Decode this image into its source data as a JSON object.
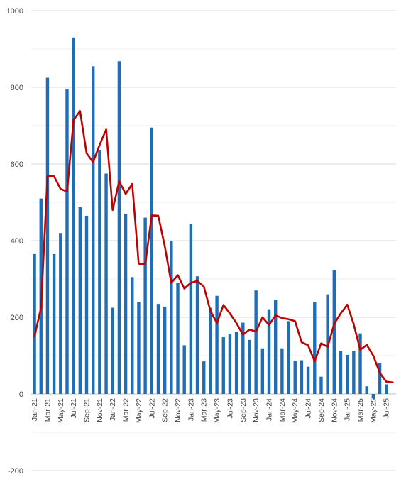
{
  "chart_data": {
    "type": "bar",
    "title": "",
    "xlabel": "",
    "ylabel": "",
    "ylim": [
      -200,
      1000
    ],
    "yticks": [
      -200,
      0,
      200,
      400,
      600,
      800,
      1000
    ],
    "grid": true,
    "legend": "none",
    "categories": [
      "Jan-21",
      "Feb-21",
      "Mar-21",
      "Apr-21",
      "May-21",
      "Jun-21",
      "Jul-21",
      "Aug-21",
      "Sep-21",
      "Oct-21",
      "Nov-21",
      "Dec-21",
      "Jan-22",
      "Feb-22",
      "Mar-22",
      "Apr-22",
      "May-22",
      "Jun-22",
      "Jul-22",
      "Aug-22",
      "Sep-22",
      "Oct-22",
      "Nov-22",
      "Dec-22",
      "Jan-23",
      "Feb-23",
      "Mar-23",
      "Apr-23",
      "May-23",
      "Jun-23",
      "Jul-23",
      "Aug-23",
      "Sep-23",
      "Oct-23",
      "Nov-23",
      "Dec-23",
      "Jan-24",
      "Feb-24",
      "Mar-24",
      "Apr-24",
      "May-24",
      "Jun-24",
      "Jul-24",
      "Aug-24",
      "Sep-24",
      "Oct-24",
      "Nov-24",
      "Dec-24",
      "Jan-25",
      "Feb-25",
      "Mar-25",
      "Apr-25",
      "May-25",
      "Jun-25",
      "Jul-25",
      "Aug-25"
    ],
    "x_tick_labels": [
      "Jan-21",
      "",
      "Mar-21",
      "",
      "May-21",
      "",
      "Jul-21",
      "",
      "Sep-21",
      "",
      "Nov-21",
      "",
      "Jan-22",
      "",
      "Mar-22",
      "",
      "May-22",
      "",
      "Jul-22",
      "",
      "Sep-22",
      "",
      "Nov-22",
      "",
      "Jan-23",
      "",
      "Mar-23",
      "",
      "May-23",
      "",
      "Jul-23",
      "",
      "Sep-23",
      "",
      "Nov-23",
      "",
      "Jan-24",
      "",
      "Mar-24",
      "",
      "May-24",
      "",
      "Jul-24",
      "",
      "Sep-24",
      "",
      "Nov-24",
      "",
      "Jan-25",
      "",
      "Mar-25",
      "",
      "May-25",
      "",
      "Jul-25",
      ""
    ],
    "series": [
      {
        "type": "bar",
        "color": "#1f6eb5",
        "values": [
          365,
          510,
          825,
          365,
          420,
          795,
          930,
          487,
          465,
          855,
          635,
          575,
          225,
          868,
          470,
          305,
          240,
          460,
          695,
          235,
          228,
          400,
          290,
          127,
          443,
          307,
          85,
          225,
          256,
          148,
          157,
          162,
          186,
          141,
          270,
          119,
          221,
          245,
          119,
          190,
          87,
          88,
          71,
          240,
          45,
          260,
          323,
          112,
          102,
          112,
          158,
          20,
          -12,
          80,
          25,
          0
        ]
      },
      {
        "type": "line",
        "color": "#c00000",
        "values": [
          150,
          225,
          568,
          568,
          535,
          528,
          715,
          738,
          628,
          605,
          650,
          690,
          480,
          555,
          522,
          548,
          340,
          338,
          466,
          465,
          385,
          290,
          310,
          275,
          290,
          295,
          280,
          217,
          185,
          232,
          210,
          185,
          155,
          168,
          163,
          200,
          180,
          205,
          198,
          195,
          190,
          135,
          127,
          85,
          132,
          123,
          183,
          210,
          233,
          182,
          115,
          128,
          100,
          55,
          32,
          30
        ]
      }
    ]
  }
}
